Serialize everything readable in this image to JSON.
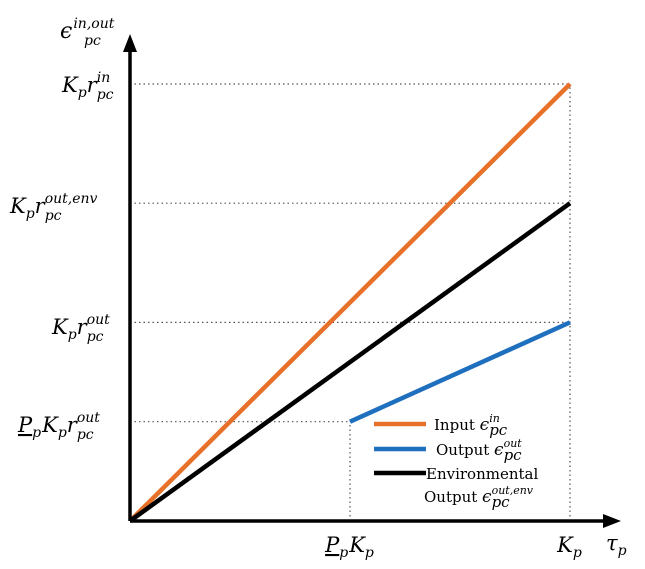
{
  "chart_data": {
    "type": "line",
    "ylabel": {
      "base": "ϵ",
      "sup": "in,out",
      "sub": "pc"
    },
    "xlabel": {
      "base": "τ",
      "sub": "p"
    },
    "xlim": [
      0,
      1.15
    ],
    "ylim": [
      0,
      1.21
    ],
    "x_ticks": [
      {
        "value": 0.5,
        "main": "P",
        "underline": true,
        "sub": "p",
        "main2": "K",
        "sub2": "p"
      },
      {
        "value": 1.0,
        "main": "K",
        "sub": "p"
      }
    ],
    "y_ticks": [
      {
        "value": 0.25,
        "pre_underline": "P",
        "pre_sub": "p",
        "main": "K",
        "sub": "p",
        "main2": "r",
        "sup2": "out",
        "sub2": "pc"
      },
      {
        "value": 0.5,
        "main": "K",
        "sub": "p",
        "main2": "r",
        "sup2": "out",
        "sub2": "pc"
      },
      {
        "value": 0.8,
        "main": "K",
        "sub": "p",
        "main2": "r",
        "sup2": "out,env",
        "sub2": "pc"
      },
      {
        "value": 1.1,
        "main": "K",
        "sub": "p",
        "main2": "r",
        "sup2": "in",
        "sub2": "pc"
      }
    ],
    "series": [
      {
        "name": "Input",
        "sym": {
          "base": "ϵ",
          "sup": "in",
          "sub": "pc"
        },
        "color": "#e8712a",
        "points": [
          [
            0,
            0
          ],
          [
            1.0,
            1.1
          ]
        ]
      },
      {
        "name": "Output",
        "sym": {
          "base": "ϵ",
          "sup": "out",
          "sub": "pc"
        },
        "color": "#1f6fbf",
        "points": [
          [
            0.5,
            0.25
          ],
          [
            1.0,
            0.5
          ]
        ]
      },
      {
        "name": "Environmental",
        "name2": "Output",
        "sym": {
          "base": "ϵ",
          "sup": "out,env",
          "sub": "pc"
        },
        "color": "#000000",
        "points": [
          [
            0,
            0
          ],
          [
            1.0,
            0.8
          ]
        ]
      }
    ],
    "grid": "dotted reference lines at tick values",
    "legend_position": "bottom-right"
  }
}
